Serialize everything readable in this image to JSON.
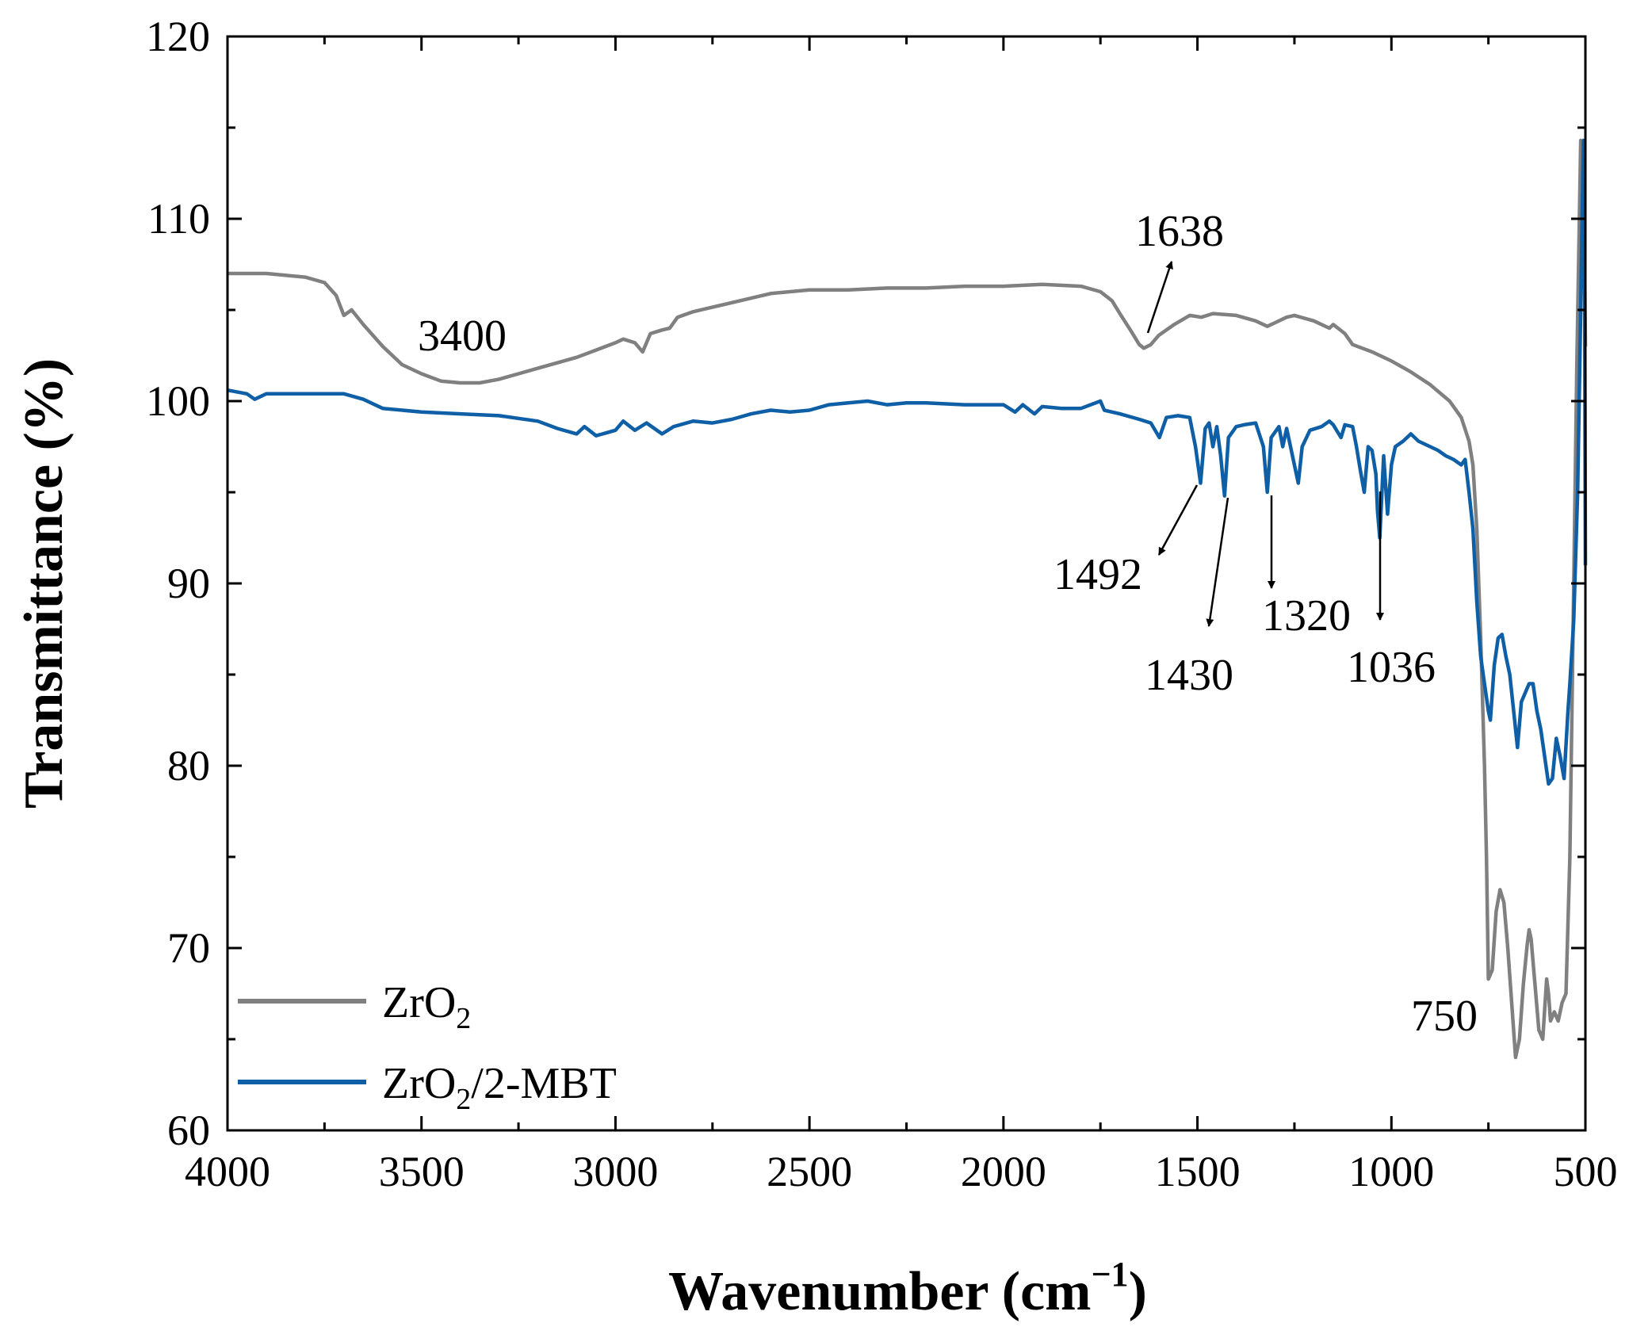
{
  "chart_data": {
    "type": "line",
    "xlabel": "Wavenumber (cm",
    "xlabel_sup": "−1",
    "xlabel_close": ")",
    "ylabel": "Transmittance (%)",
    "xlim": [
      4000,
      500
    ],
    "ylim": [
      60,
      120
    ],
    "x_reversed": true,
    "xticks": [
      4000,
      3500,
      3000,
      2500,
      2000,
      1500,
      1000,
      500
    ],
    "yticks": [
      60,
      70,
      80,
      90,
      100,
      110,
      120
    ],
    "grid": false,
    "legend_position": "bottom-left",
    "series": [
      {
        "name": "ZrO",
        "name_sub": "2",
        "color": "#808080",
        "points": [
          [
            4000,
            107.0
          ],
          [
            3900,
            107.0
          ],
          [
            3800,
            106.8
          ],
          [
            3750,
            106.5
          ],
          [
            3720,
            105.8
          ],
          [
            3700,
            104.7
          ],
          [
            3680,
            105.0
          ],
          [
            3650,
            104.2
          ],
          [
            3600,
            103.0
          ],
          [
            3550,
            102.0
          ],
          [
            3500,
            101.5
          ],
          [
            3450,
            101.1
          ],
          [
            3400,
            101.0
          ],
          [
            3350,
            101.0
          ],
          [
            3300,
            101.2
          ],
          [
            3250,
            101.5
          ],
          [
            3200,
            101.8
          ],
          [
            3150,
            102.1
          ],
          [
            3100,
            102.4
          ],
          [
            3050,
            102.8
          ],
          [
            3000,
            103.2
          ],
          [
            2980,
            103.4
          ],
          [
            2950,
            103.2
          ],
          [
            2930,
            102.7
          ],
          [
            2910,
            103.7
          ],
          [
            2880,
            103.9
          ],
          [
            2860,
            104.0
          ],
          [
            2840,
            104.6
          ],
          [
            2800,
            104.9
          ],
          [
            2700,
            105.4
          ],
          [
            2600,
            105.9
          ],
          [
            2500,
            106.1
          ],
          [
            2400,
            106.1
          ],
          [
            2300,
            106.2
          ],
          [
            2200,
            106.2
          ],
          [
            2100,
            106.3
          ],
          [
            2000,
            106.3
          ],
          [
            1900,
            106.4
          ],
          [
            1800,
            106.3
          ],
          [
            1750,
            106.0
          ],
          [
            1720,
            105.5
          ],
          [
            1700,
            104.8
          ],
          [
            1670,
            103.8
          ],
          [
            1650,
            103.1
          ],
          [
            1638,
            102.9
          ],
          [
            1620,
            103.1
          ],
          [
            1600,
            103.6
          ],
          [
            1560,
            104.2
          ],
          [
            1520,
            104.7
          ],
          [
            1490,
            104.6
          ],
          [
            1460,
            104.8
          ],
          [
            1400,
            104.7
          ],
          [
            1350,
            104.4
          ],
          [
            1320,
            104.1
          ],
          [
            1300,
            104.3
          ],
          [
            1270,
            104.6
          ],
          [
            1250,
            104.7
          ],
          [
            1200,
            104.4
          ],
          [
            1160,
            104.0
          ],
          [
            1150,
            104.2
          ],
          [
            1120,
            103.7
          ],
          [
            1100,
            103.1
          ],
          [
            1050,
            102.7
          ],
          [
            1000,
            102.2
          ],
          [
            950,
            101.6
          ],
          [
            900,
            100.9
          ],
          [
            850,
            100.0
          ],
          [
            820,
            99.1
          ],
          [
            800,
            97.8
          ],
          [
            790,
            96.5
          ],
          [
            780,
            93.0
          ],
          [
            770,
            87.0
          ],
          [
            760,
            80.0
          ],
          [
            755,
            75.0
          ],
          [
            750,
            68.3
          ],
          [
            740,
            68.8
          ],
          [
            730,
            72.0
          ],
          [
            720,
            73.2
          ],
          [
            710,
            72.5
          ],
          [
            700,
            70.0
          ],
          [
            690,
            67.0
          ],
          [
            680,
            64.0
          ],
          [
            670,
            65.0
          ],
          [
            660,
            68.0
          ],
          [
            650,
            70.2
          ],
          [
            645,
            71.0
          ],
          [
            640,
            70.5
          ],
          [
            630,
            68.0
          ],
          [
            620,
            65.5
          ],
          [
            610,
            65.0
          ],
          [
            600,
            68.3
          ],
          [
            595,
            67.5
          ],
          [
            590,
            66.0
          ],
          [
            580,
            66.5
          ],
          [
            570,
            66.0
          ],
          [
            560,
            67.0
          ],
          [
            550,
            67.5
          ],
          [
            540,
            75.0
          ],
          [
            530,
            90.0
          ],
          [
            522,
            102.0
          ],
          [
            512,
            114.3
          ],
          [
            505,
            114.0
          ],
          [
            500,
            103.0
          ]
        ]
      },
      {
        "name": "ZrO",
        "name_sub": "2",
        "name_suffix": "/2-MBT",
        "color": "#0f5fa6",
        "points": [
          [
            4000,
            100.6
          ],
          [
            3950,
            100.4
          ],
          [
            3930,
            100.1
          ],
          [
            3900,
            100.4
          ],
          [
            3800,
            100.4
          ],
          [
            3700,
            100.4
          ],
          [
            3650,
            100.1
          ],
          [
            3600,
            99.6
          ],
          [
            3500,
            99.4
          ],
          [
            3400,
            99.3
          ],
          [
            3300,
            99.2
          ],
          [
            3200,
            98.9
          ],
          [
            3150,
            98.5
          ],
          [
            3100,
            98.2
          ],
          [
            3080,
            98.6
          ],
          [
            3050,
            98.1
          ],
          [
            3000,
            98.4
          ],
          [
            2980,
            98.9
          ],
          [
            2950,
            98.4
          ],
          [
            2920,
            98.8
          ],
          [
            2880,
            98.2
          ],
          [
            2850,
            98.6
          ],
          [
            2800,
            98.9
          ],
          [
            2750,
            98.8
          ],
          [
            2700,
            99.0
          ],
          [
            2650,
            99.3
          ],
          [
            2600,
            99.5
          ],
          [
            2550,
            99.4
          ],
          [
            2500,
            99.5
          ],
          [
            2450,
            99.8
          ],
          [
            2400,
            99.9
          ],
          [
            2350,
            100.0
          ],
          [
            2300,
            99.8
          ],
          [
            2250,
            99.9
          ],
          [
            2200,
            99.9
          ],
          [
            2100,
            99.8
          ],
          [
            2000,
            99.8
          ],
          [
            1970,
            99.4
          ],
          [
            1950,
            99.8
          ],
          [
            1920,
            99.3
          ],
          [
            1900,
            99.7
          ],
          [
            1850,
            99.6
          ],
          [
            1800,
            99.6
          ],
          [
            1750,
            100.0
          ],
          [
            1740,
            99.5
          ],
          [
            1700,
            99.3
          ],
          [
            1650,
            99.0
          ],
          [
            1620,
            98.8
          ],
          [
            1598,
            98.0
          ],
          [
            1580,
            99.1
          ],
          [
            1550,
            99.2
          ],
          [
            1520,
            99.1
          ],
          [
            1505,
            97.5
          ],
          [
            1492,
            95.5
          ],
          [
            1480,
            98.5
          ],
          [
            1470,
            98.8
          ],
          [
            1460,
            97.5
          ],
          [
            1450,
            98.6
          ],
          [
            1440,
            97.0
          ],
          [
            1430,
            94.8
          ],
          [
            1420,
            98.0
          ],
          [
            1400,
            98.6
          ],
          [
            1380,
            98.7
          ],
          [
            1350,
            98.8
          ],
          [
            1330,
            97.5
          ],
          [
            1320,
            95.0
          ],
          [
            1310,
            98.0
          ],
          [
            1290,
            98.6
          ],
          [
            1280,
            97.5
          ],
          [
            1270,
            98.5
          ],
          [
            1250,
            96.5
          ],
          [
            1240,
            95.5
          ],
          [
            1230,
            97.5
          ],
          [
            1210,
            98.4
          ],
          [
            1180,
            98.6
          ],
          [
            1160,
            98.9
          ],
          [
            1150,
            98.7
          ],
          [
            1130,
            98.0
          ],
          [
            1120,
            98.7
          ],
          [
            1100,
            98.6
          ],
          [
            1090,
            97.5
          ],
          [
            1080,
            96.2
          ],
          [
            1070,
            95.0
          ],
          [
            1060,
            97.5
          ],
          [
            1050,
            97.3
          ],
          [
            1040,
            96.0
          ],
          [
            1036,
            94.0
          ],
          [
            1030,
            92.5
          ],
          [
            1020,
            97.0
          ],
          [
            1010,
            93.8
          ],
          [
            1000,
            96.5
          ],
          [
            990,
            97.5
          ],
          [
            970,
            97.8
          ],
          [
            950,
            98.2
          ],
          [
            930,
            97.8
          ],
          [
            900,
            97.5
          ],
          [
            880,
            97.3
          ],
          [
            860,
            97.0
          ],
          [
            840,
            96.8
          ],
          [
            820,
            96.5
          ],
          [
            810,
            96.8
          ],
          [
            800,
            95.0
          ],
          [
            790,
            93.0
          ],
          [
            780,
            89.0
          ],
          [
            770,
            86.0
          ],
          [
            760,
            84.5
          ],
          [
            750,
            83.0
          ],
          [
            745,
            82.5
          ],
          [
            735,
            85.5
          ],
          [
            725,
            87.0
          ],
          [
            715,
            87.2
          ],
          [
            705,
            86.0
          ],
          [
            695,
            85.0
          ],
          [
            685,
            83.0
          ],
          [
            675,
            81.0
          ],
          [
            665,
            83.5
          ],
          [
            655,
            84.0
          ],
          [
            645,
            84.5
          ],
          [
            635,
            84.5
          ],
          [
            625,
            83.0
          ],
          [
            615,
            82.0
          ],
          [
            605,
            80.5
          ],
          [
            595,
            79.0
          ],
          [
            585,
            79.3
          ],
          [
            575,
            81.5
          ],
          [
            565,
            80.5
          ],
          [
            555,
            79.3
          ],
          [
            545,
            83.0
          ],
          [
            540,
            84.5
          ],
          [
            530,
            88.0
          ],
          [
            520,
            95.0
          ],
          [
            512,
            105.0
          ],
          [
            507,
            112.0
          ],
          [
            505,
            114.3
          ],
          [
            502,
            107.0
          ],
          [
            500,
            91.0
          ]
        ]
      }
    ],
    "annotations": [
      {
        "text": "3400"
      },
      {
        "text": "1638"
      },
      {
        "text": "1492"
      },
      {
        "text": "1430"
      },
      {
        "text": "1320"
      },
      {
        "text": "1036"
      },
      {
        "text": "750"
      }
    ]
  }
}
